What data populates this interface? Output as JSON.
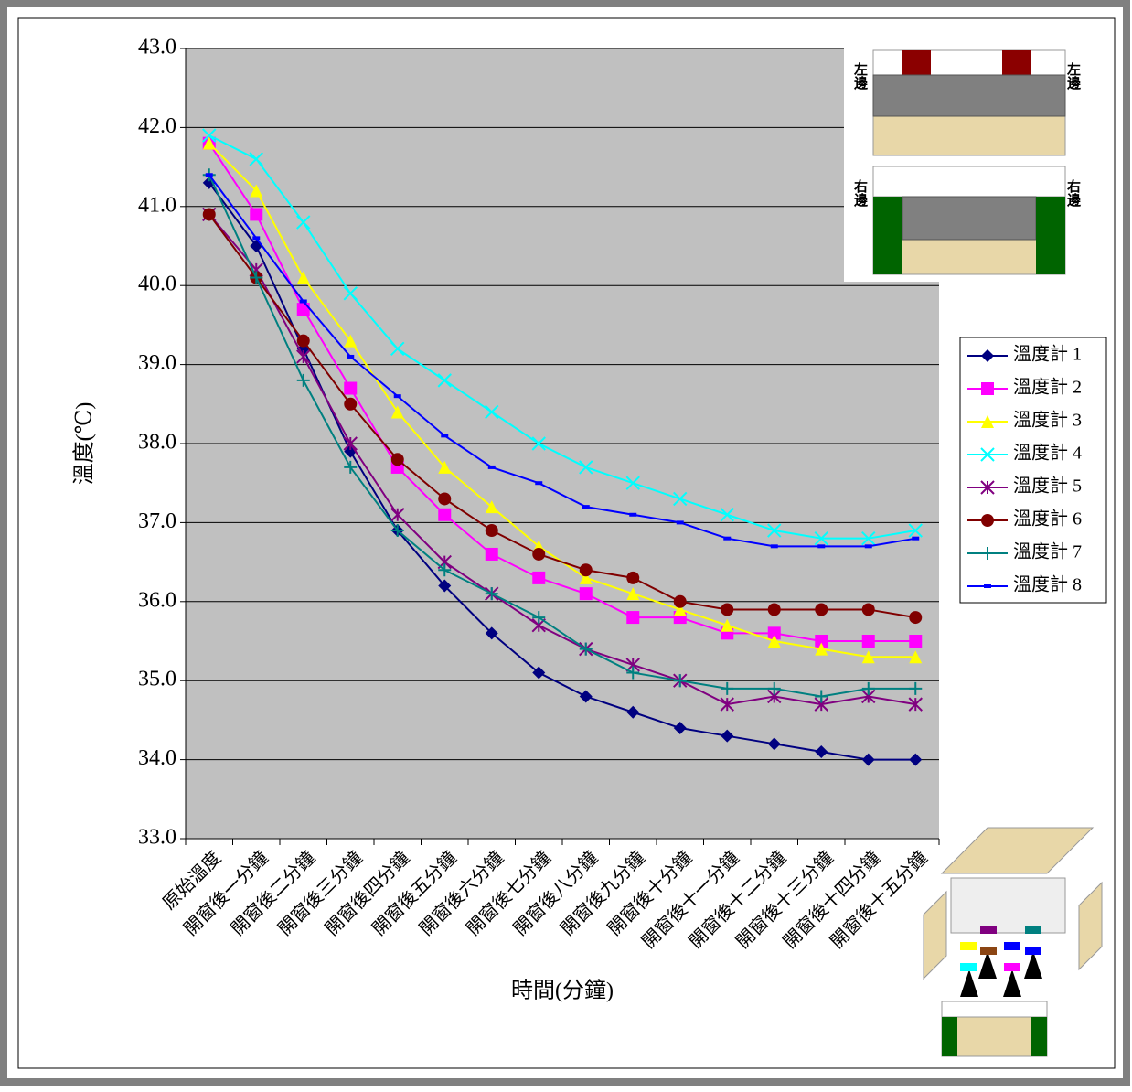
{
  "chart_data": {
    "type": "line",
    "y_label": "溫度(℃)",
    "x_label": "時間(分鐘)",
    "categories": [
      "原始溫度",
      "開窗後一分鐘",
      "開窗後二分鐘",
      "開窗後三分鐘",
      "開窗後四分鐘",
      "開窗後五分鐘",
      "開窗後六分鐘",
      "開窗後七分鐘",
      "開窗後八分鐘",
      "開窗後九分鐘",
      "開窗後十分鐘",
      "開窗後十一分鐘",
      "開窗後十二分鐘",
      "開窗後十三分鐘",
      "開窗後十四分鐘",
      "開窗後十五分鐘"
    ],
    "ylim": [
      33,
      43
    ],
    "yticks": [
      {
        "value": 33,
        "label": "33.0"
      },
      {
        "value": 34,
        "label": "34.0"
      },
      {
        "value": 35,
        "label": "35.0"
      },
      {
        "value": 36,
        "label": "36.0"
      },
      {
        "value": 37,
        "label": "37.0"
      },
      {
        "value": 38,
        "label": "38.0"
      },
      {
        "value": 39,
        "label": "39.0"
      },
      {
        "value": 40,
        "label": "40.0"
      },
      {
        "value": 41,
        "label": "41.0"
      },
      {
        "value": 42,
        "label": "42.0"
      },
      {
        "value": 43,
        "label": "43.0"
      }
    ],
    "grid": true,
    "legend": "right",
    "series": [
      {
        "name": "溫度計 1",
        "color": "#000080",
        "marker": "diamond",
        "values": [
          41.3,
          40.5,
          39.2,
          37.9,
          36.9,
          36.2,
          35.6,
          35.1,
          34.8,
          34.6,
          34.4,
          34.3,
          34.2,
          34.1,
          34.0,
          34.0
        ]
      },
      {
        "name": "溫度計 2",
        "color": "#ff00ff",
        "marker": "square",
        "values": [
          41.8,
          40.9,
          39.7,
          38.7,
          37.7,
          37.1,
          36.6,
          36.3,
          36.1,
          35.8,
          35.8,
          35.6,
          35.6,
          35.5,
          35.5,
          35.5
        ]
      },
      {
        "name": "溫度計 3",
        "color": "#ffff00",
        "marker": "triangle",
        "values": [
          41.8,
          41.2,
          40.1,
          39.3,
          38.4,
          37.7,
          37.2,
          36.7,
          36.3,
          36.1,
          35.9,
          35.7,
          35.5,
          35.4,
          35.3,
          35.3
        ]
      },
      {
        "name": "溫度計 4",
        "color": "#00ffff",
        "marker": "x",
        "values": [
          41.9,
          41.6,
          40.8,
          39.9,
          39.2,
          38.8,
          38.4,
          38.0,
          37.7,
          37.5,
          37.3,
          37.1,
          36.9,
          36.8,
          36.8,
          36.9
        ]
      },
      {
        "name": "溫度計 5",
        "color": "#800080",
        "marker": "star",
        "values": [
          40.9,
          40.2,
          39.1,
          38.0,
          37.1,
          36.5,
          36.1,
          35.7,
          35.4,
          35.2,
          35.0,
          34.7,
          34.8,
          34.7,
          34.8,
          34.7
        ]
      },
      {
        "name": "溫度計 6",
        "color": "#800000",
        "marker": "circle",
        "values": [
          40.9,
          40.1,
          39.3,
          38.5,
          37.8,
          37.3,
          36.9,
          36.6,
          36.4,
          36.3,
          36.0,
          35.9,
          35.9,
          35.9,
          35.9,
          35.8
        ]
      },
      {
        "name": "溫度計 7",
        "color": "#008080",
        "marker": "plus",
        "values": [
          41.4,
          40.1,
          38.8,
          37.7,
          36.9,
          36.4,
          36.1,
          35.8,
          35.4,
          35.1,
          35.0,
          34.9,
          34.9,
          34.8,
          34.9,
          34.9
        ]
      },
      {
        "name": "溫度計 8",
        "color": "#0000ff",
        "marker": "dash",
        "values": [
          41.4,
          40.6,
          39.8,
          39.1,
          38.6,
          38.1,
          37.7,
          37.5,
          37.2,
          37.1,
          37.0,
          36.8,
          36.7,
          36.7,
          36.7,
          36.8
        ]
      }
    ],
    "inset_labels": [
      "左邊",
      "左邊",
      "右邊",
      "右邊"
    ]
  }
}
